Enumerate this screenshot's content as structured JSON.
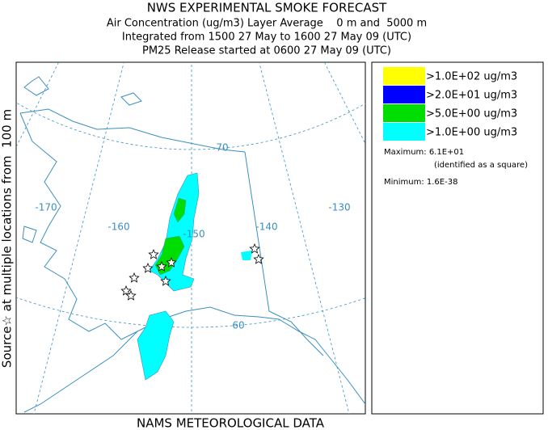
{
  "header": {
    "title": "NWS EXPERIMENTAL SMOKE FORECAST",
    "lines": [
      "Air Concentration (ug/m3) Layer Average    0 m and  5000 m",
      "Integrated from 1500 27 May to 1600 27 May 09 (UTC)",
      "PM25 Release started at 0600 27 May 09 (UTC)"
    ]
  },
  "side_label": "Source☆ at multiple locations from  100 m",
  "footer": "NAMS METEOROLOGICAL DATA",
  "map": {
    "labels": [
      "-170",
      "-160",
      "-150",
      "-140",
      "-130",
      "70",
      "60"
    ]
  },
  "legend": {
    "items": [
      {
        "label": ">1.0E+02 ug/m3",
        "color": "#ffff00"
      },
      {
        "label": ">2.0E+01 ug/m3",
        "color": "#0000ff"
      },
      {
        "label": ">5.0E+00 ug/m3",
        "color": "#00dd00"
      },
      {
        "label": ">1.0E+00 ug/m3",
        "color": "#00ffff"
      }
    ],
    "maximum": "Maximum: 6.1E+01",
    "maximum_note": "(identified as a square)",
    "minimum": "Minimum: 1.6E-38"
  }
}
